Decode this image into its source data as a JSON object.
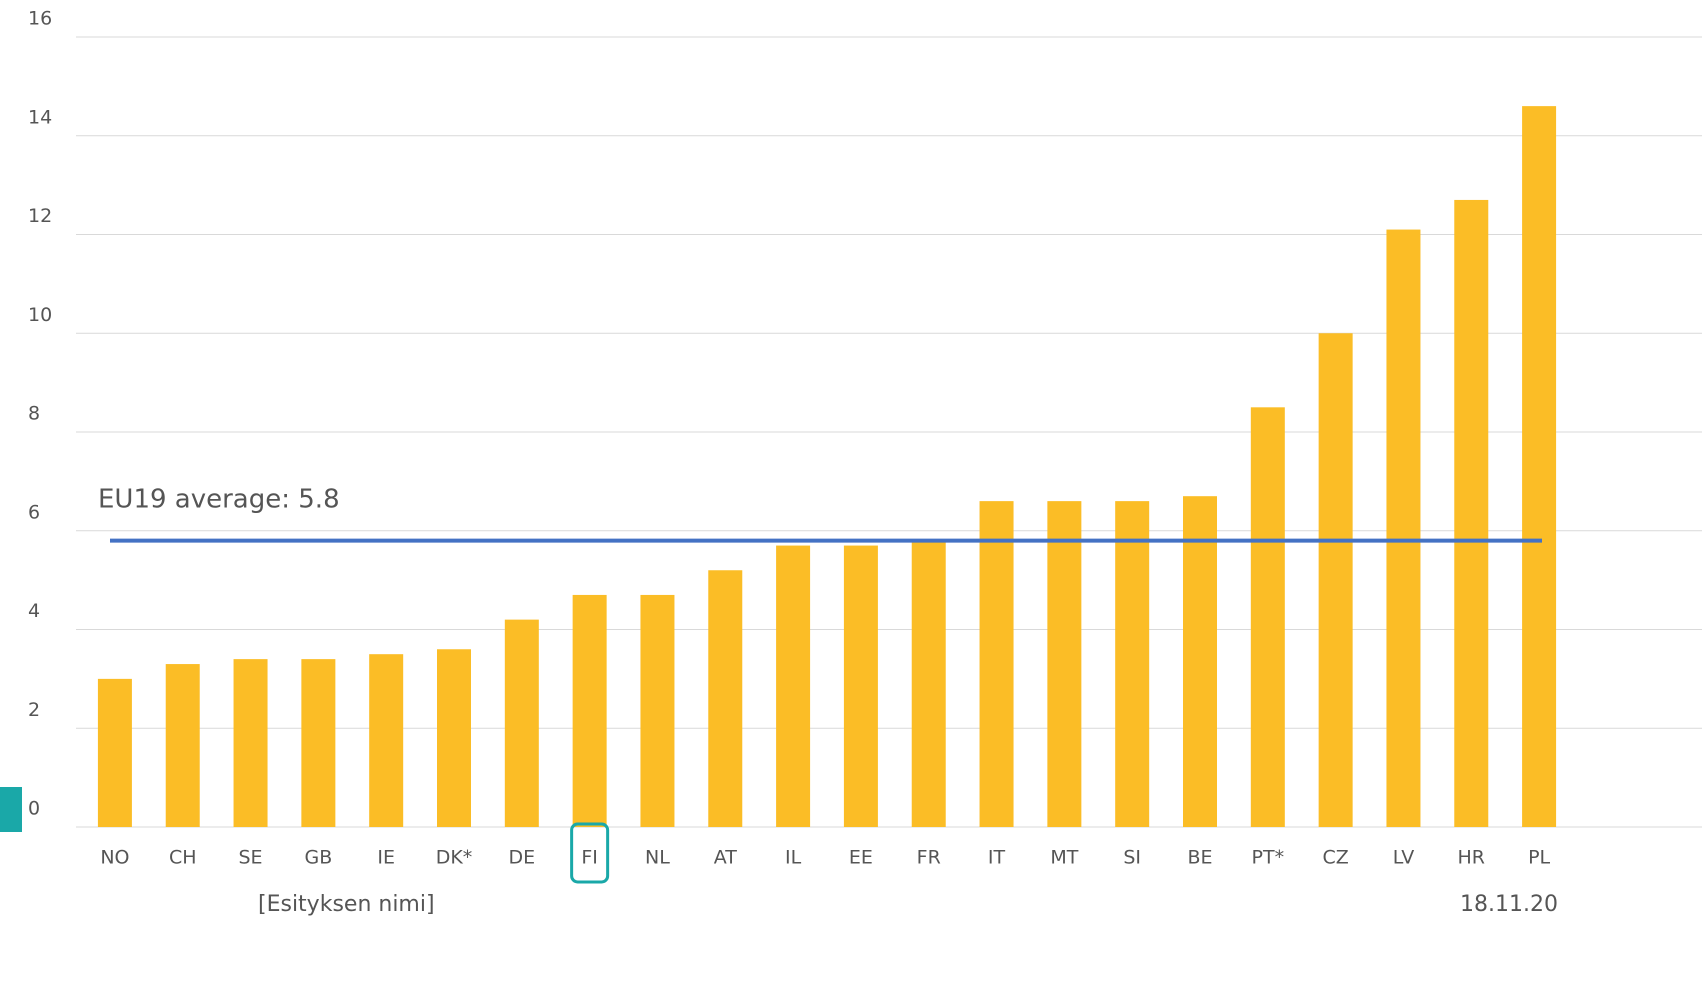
{
  "chart_data": {
    "type": "bar",
    "categories": [
      "NO",
      "CH",
      "SE",
      "GB",
      "IE",
      "DK*",
      "DE",
      "FI",
      "NL",
      "AT",
      "IL",
      "EE",
      "FR",
      "IT",
      "MT",
      "SI",
      "BE",
      "PT*",
      "CZ",
      "LV",
      "HR",
      "PL"
    ],
    "values": [
      3.0,
      3.3,
      3.4,
      3.4,
      3.5,
      3.6,
      4.2,
      4.7,
      4.7,
      5.2,
      5.7,
      5.7,
      5.8,
      6.6,
      6.6,
      6.6,
      6.7,
      8.5,
      10.0,
      12.1,
      12.7,
      14.6
    ],
    "color": "#fbbd26",
    "ylim": [
      0,
      16
    ],
    "yticks": [
      0,
      2,
      4,
      6,
      8,
      10,
      12,
      14,
      16
    ],
    "grid": true,
    "average_line": {
      "label": "EU19 average: 5.8",
      "value": 5.8,
      "color": "#4472c4"
    },
    "highlight_category": "FI",
    "highlight_color": "#1aa8a8"
  },
  "footer": {
    "title": "[Esityksen nimi]",
    "date": "18.11.20"
  }
}
